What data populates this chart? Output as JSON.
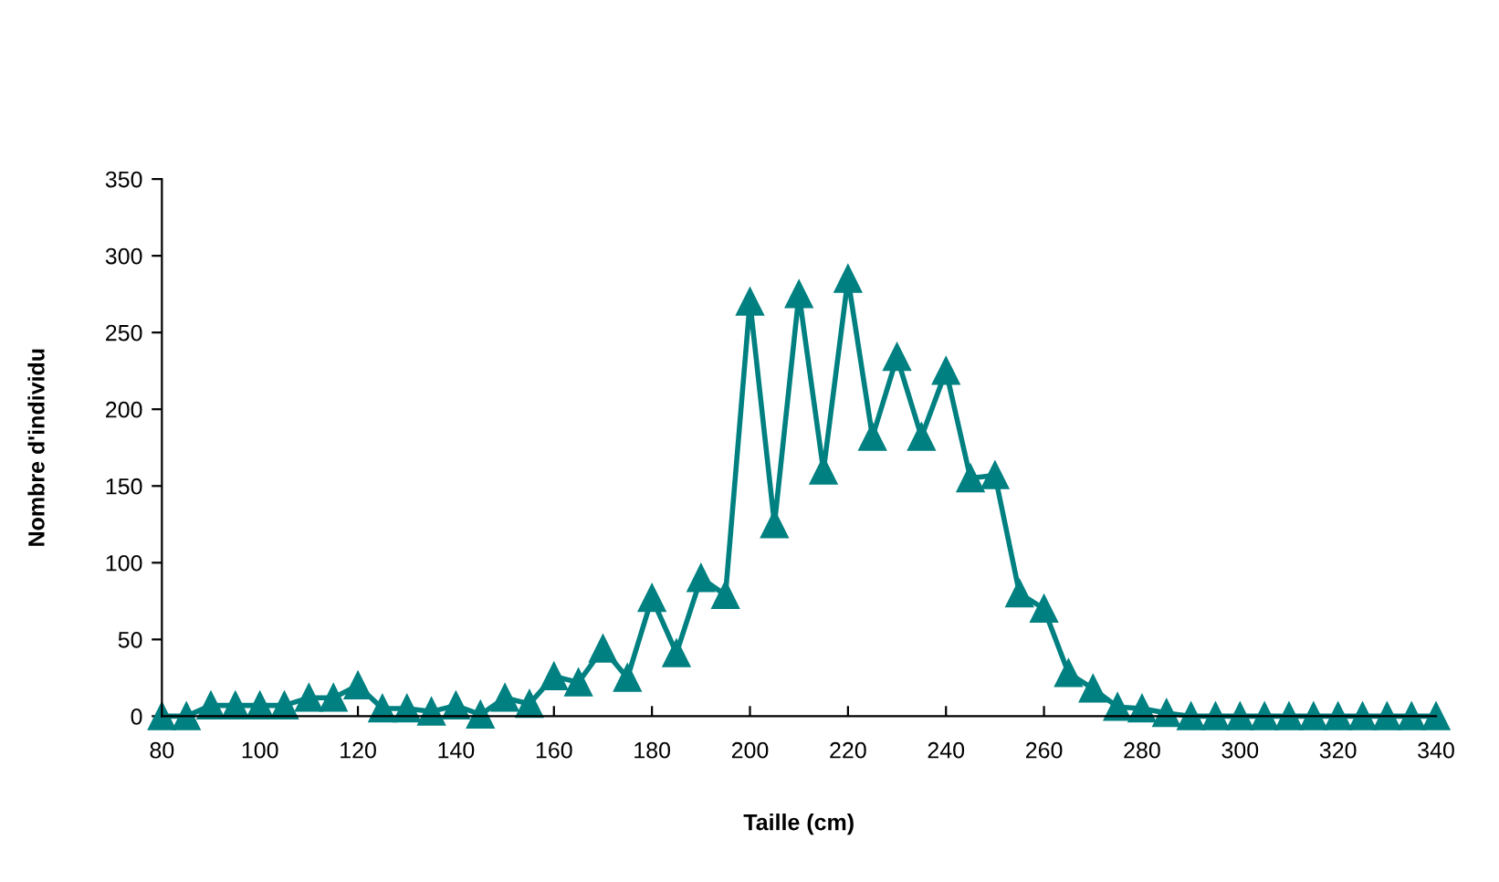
{
  "chart_data": {
    "type": "line",
    "xlabel": "Taille (cm)",
    "ylabel": "Nombre d'individu",
    "x": [
      80,
      85,
      90,
      95,
      100,
      105,
      110,
      115,
      120,
      125,
      130,
      135,
      140,
      145,
      150,
      155,
      160,
      165,
      170,
      175,
      180,
      185,
      190,
      195,
      200,
      205,
      210,
      215,
      220,
      225,
      230,
      235,
      240,
      245,
      250,
      255,
      260,
      265,
      270,
      275,
      280,
      285,
      290,
      295,
      300,
      305,
      310,
      315,
      320,
      325,
      330,
      335,
      340
    ],
    "series": [
      {
        "color": "#008080",
        "values": [
          0,
          0,
          7,
          7,
          7,
          7,
          12,
          12,
          20,
          5,
          5,
          3,
          7,
          1,
          12,
          8,
          26,
          22,
          44,
          25,
          77,
          41,
          90,
          79,
          270,
          125,
          275,
          160,
          285,
          182,
          234,
          182,
          225,
          155,
          157,
          80,
          70,
          28,
          18,
          6,
          5,
          2,
          0,
          0,
          0,
          0,
          0,
          0,
          0,
          0,
          0,
          0,
          0
        ]
      }
    ],
    "xlim": [
      80,
      340
    ],
    "xticks": [
      80,
      100,
      120,
      140,
      160,
      180,
      200,
      220,
      240,
      260,
      280,
      300,
      320,
      340
    ],
    "ylim": [
      0,
      350
    ],
    "yticks": [
      0,
      50,
      100,
      150,
      200,
      250,
      300,
      350
    ],
    "grid": false,
    "legend": false,
    "marker": "triangle",
    "line_style": "solid"
  }
}
